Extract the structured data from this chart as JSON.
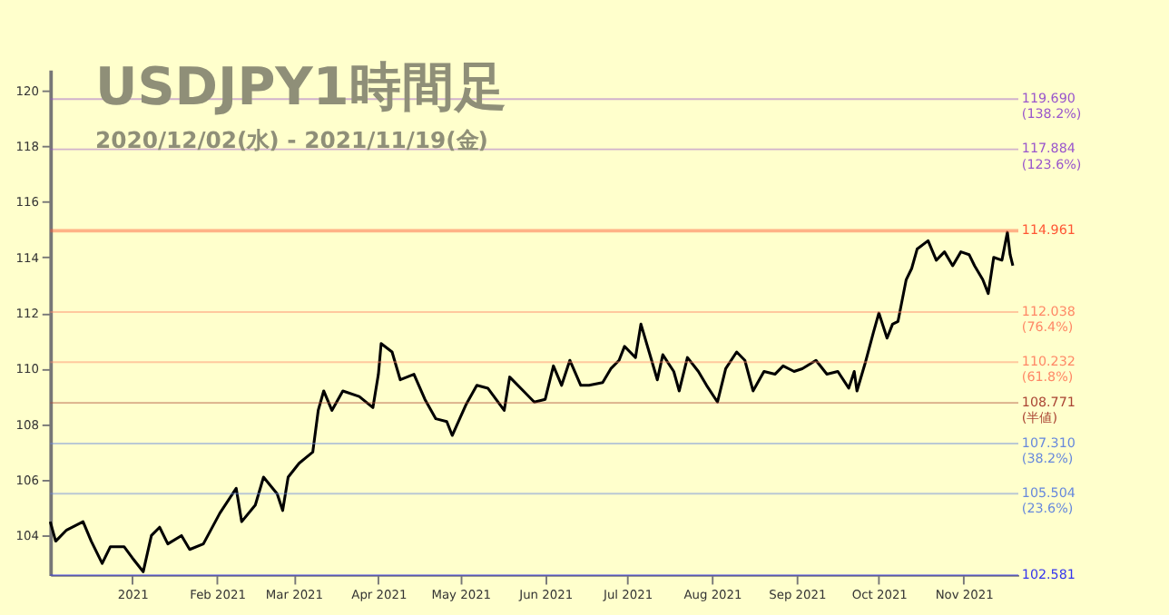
{
  "chart_data": {
    "type": "line",
    "title": "USDJPY1時間足",
    "subtitle": "2020/12/02(水) - 2021/11/19(金)",
    "x": [
      "2020-12-02",
      "2020-12-04",
      "2020-12-08",
      "2020-12-14",
      "2020-12-17",
      "2020-12-21",
      "2020-12-24",
      "2020-12-29",
      "2021-01-01",
      "2021-01-05",
      "2021-01-08",
      "2021-01-11",
      "2021-01-14",
      "2021-01-19",
      "2021-01-22",
      "2021-01-27",
      "2021-02-02",
      "2021-02-08",
      "2021-02-10",
      "2021-02-15",
      "2021-02-18",
      "2021-02-23",
      "2021-02-25",
      "2021-02-27",
      "2021-03-03",
      "2021-03-08",
      "2021-03-10",
      "2021-03-12",
      "2021-03-15",
      "2021-03-19",
      "2021-03-25",
      "2021-03-30",
      "2021-04-01",
      "2021-04-02",
      "2021-04-06",
      "2021-04-09",
      "2021-04-14",
      "2021-04-18",
      "2021-04-22",
      "2021-04-26",
      "2021-04-28",
      "2021-05-03",
      "2021-05-07",
      "2021-05-11",
      "2021-05-14",
      "2021-05-17",
      "2021-05-19",
      "2021-05-25",
      "2021-05-28",
      "2021-06-01",
      "2021-06-04",
      "2021-06-07",
      "2021-06-10",
      "2021-06-14",
      "2021-06-17",
      "2021-06-22",
      "2021-06-25",
      "2021-06-28",
      "2021-06-30",
      "2021-07-02",
      "2021-07-04",
      "2021-07-06",
      "2021-07-09",
      "2021-07-12",
      "2021-07-14",
      "2021-07-18",
      "2021-07-20",
      "2021-07-23",
      "2021-07-27",
      "2021-07-30",
      "2021-08-03",
      "2021-08-06",
      "2021-08-10",
      "2021-08-13",
      "2021-08-16",
      "2021-08-20",
      "2021-08-24",
      "2021-08-27",
      "2021-08-31",
      "2021-09-03",
      "2021-09-08",
      "2021-09-12",
      "2021-09-16",
      "2021-09-20",
      "2021-09-22",
      "2021-09-23",
      "2021-09-26",
      "2021-09-29",
      "2021-10-01",
      "2021-10-04",
      "2021-10-06",
      "2021-10-08",
      "2021-10-11",
      "2021-10-13",
      "2021-10-15",
      "2021-10-19",
      "2021-10-22",
      "2021-10-25",
      "2021-10-28",
      "2021-10-31",
      "2021-11-03",
      "2021-11-05",
      "2021-11-08",
      "2021-11-10",
      "2021-11-12",
      "2021-11-15",
      "2021-11-17",
      "2021-11-18",
      "2021-11-19"
    ],
    "series": [
      {
        "color": "#000000",
        "values": [
          104.5,
          103.8,
          104.2,
          104.5,
          103.8,
          103.0,
          103.6,
          103.6,
          103.2,
          102.7,
          104.0,
          104.3,
          103.7,
          104.0,
          103.5,
          103.7,
          104.8,
          105.7,
          104.5,
          105.1,
          106.1,
          105.5,
          104.9,
          106.1,
          106.6,
          107.0,
          108.5,
          109.2,
          108.5,
          109.2,
          109.0,
          108.6,
          109.8,
          110.9,
          110.6,
          109.6,
          109.8,
          108.9,
          108.2,
          108.1,
          107.6,
          108.7,
          109.4,
          109.3,
          108.9,
          108.5,
          109.7,
          109.1,
          108.8,
          108.9,
          110.1,
          109.4,
          110.3,
          109.4,
          109.4,
          109.5,
          110.0,
          110.3,
          110.8,
          110.6,
          110.4,
          111.6,
          110.6,
          109.6,
          110.5,
          109.9,
          109.2,
          110.4,
          109.9,
          109.4,
          108.8,
          110.0,
          110.6,
          110.3,
          109.2,
          109.9,
          109.8,
          110.1,
          109.9,
          110.0,
          110.3,
          109.8,
          109.9,
          109.3,
          109.9,
          109.2,
          110.2,
          111.3,
          112.0,
          111.1,
          111.6,
          111.7,
          113.2,
          113.6,
          114.3,
          114.6,
          113.9,
          114.2,
          113.7,
          114.2,
          114.1,
          113.7,
          113.2,
          112.7,
          114.0,
          113.9,
          114.9,
          114.1,
          113.7
        ]
      }
    ],
    "xlim": [
      "2020-12-02",
      "2021-11-21"
    ],
    "xticks": [
      {
        "value": "2021-01-01",
        "label": "2021"
      },
      {
        "value": "2021-02-01",
        "label": "Feb 2021"
      },
      {
        "value": "2021-03-01",
        "label": "Mar 2021"
      },
      {
        "value": "2021-04-01",
        "label": "Apr 2021"
      },
      {
        "value": "2021-05-01",
        "label": "May 2021"
      },
      {
        "value": "2021-06-01",
        "label": "Jun 2021"
      },
      {
        "value": "2021-07-01",
        "label": "Jul 2021"
      },
      {
        "value": "2021-08-01",
        "label": "Aug 2021"
      },
      {
        "value": "2021-09-01",
        "label": "Sep 2021"
      },
      {
        "value": "2021-10-01",
        "label": "Oct 2021"
      },
      {
        "value": "2021-11-01",
        "label": "Nov 2021"
      }
    ],
    "ylim": [
      102.581,
      120.75
    ],
    "yticks": [
      104,
      106,
      108,
      110,
      112,
      114,
      116,
      118,
      120
    ],
    "grid": false,
    "legend": false,
    "ref_lines": [
      {
        "axis": "y",
        "value": 119.69,
        "label": "119.690 (138.2%)",
        "color": "#9955cc"
      },
      {
        "axis": "y",
        "value": 117.884,
        "label": "117.884 (123.6%)",
        "color": "#9955cc"
      },
      {
        "axis": "y",
        "value": 114.961,
        "label": "114.961",
        "color": "#ff5533"
      },
      {
        "axis": "y",
        "value": 112.038,
        "label": "112.038 (76.4%)",
        "color": "#ff8866"
      },
      {
        "axis": "y",
        "value": 110.232,
        "label": "110.232 (61.8%)",
        "color": "#ff8866"
      },
      {
        "axis": "y",
        "value": 108.771,
        "label": "108.771 (半値)",
        "color": "#aa4433"
      },
      {
        "axis": "y",
        "value": 107.31,
        "label": "107.310 (38.2%)",
        "color": "#6688dd"
      },
      {
        "axis": "y",
        "value": 105.504,
        "label": "105.504 (23.6%)",
        "color": "#6688dd"
      },
      {
        "axis": "y",
        "value": 102.581,
        "label": "102.581",
        "color": "#3333ee"
      }
    ]
  }
}
